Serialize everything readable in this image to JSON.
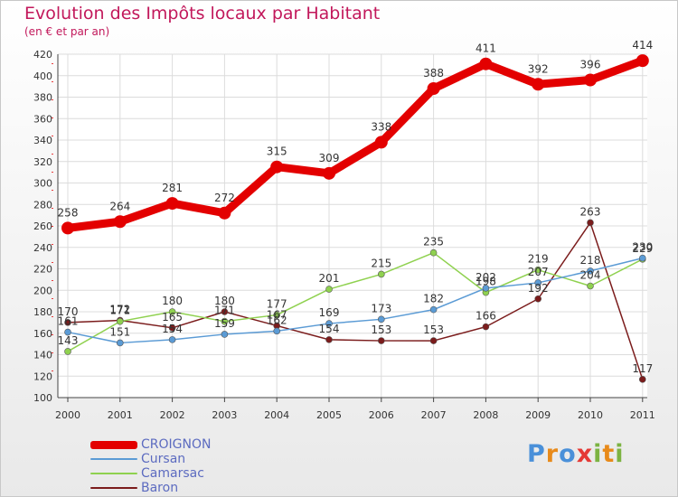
{
  "header": {
    "title": "Evolution des Impôts locaux par Habitant",
    "subtitle": "(en € et par an)"
  },
  "logo": {
    "text": "Proxiti",
    "letter_colors": [
      "#4a90d9",
      "#e88a1a",
      "#4a90d9",
      "#e53935",
      "#7cb342",
      "#e88a1a",
      "#7cb342"
    ]
  },
  "chart_data": {
    "type": "line",
    "x": [
      "2000",
      "2001",
      "2002",
      "2003",
      "2004",
      "2005",
      "2006",
      "2007",
      "2008",
      "2009",
      "2010",
      "2011"
    ],
    "ylim": [
      100,
      420
    ],
    "yticks": [
      100,
      120,
      140,
      160,
      180,
      200,
      220,
      240,
      260,
      280,
      300,
      320,
      340,
      360,
      380,
      400,
      420
    ],
    "grid": true,
    "legend_position": "bottom-left",
    "series": [
      {
        "name": "CROIGNON",
        "color": "#e30000",
        "values": [
          258,
          264,
          281,
          272,
          315,
          309,
          338,
          388,
          411,
          392,
          396,
          414
        ],
        "labels": [
          "258",
          "264",
          "281",
          "272",
          "315",
          "309",
          "338",
          "388",
          "411",
          "392",
          "396",
          "414"
        ]
      },
      {
        "name": "Cursan",
        "color": "#5b9bd5",
        "values": [
          161,
          151,
          154,
          159,
          162,
          169,
          173,
          182,
          202,
          207,
          218,
          230
        ],
        "labels": [
          "161",
          "151",
          "154",
          "159",
          "162",
          "169",
          "173",
          "182",
          "202",
          "207",
          "218",
          "230"
        ]
      },
      {
        "name": "Camarsac",
        "color": "#8fd14f",
        "values": [
          143,
          171,
          180,
          171,
          177,
          201,
          215,
          235,
          198,
          219,
          204,
          229
        ],
        "labels": [
          "143",
          "171",
          "180",
          "171",
          "177",
          "201",
          "215",
          "235",
          "198",
          "219",
          "204",
          "229"
        ]
      },
      {
        "name": "Baron",
        "color": "#7b1c1c",
        "values": [
          170,
          172,
          165,
          180,
          167,
          154,
          153,
          153,
          166,
          192,
          263,
          117
        ],
        "labels": [
          "170",
          "172",
          "165",
          "180",
          "167",
          "154",
          "153",
          "153",
          "166",
          "192",
          "263",
          "117"
        ]
      }
    ]
  }
}
